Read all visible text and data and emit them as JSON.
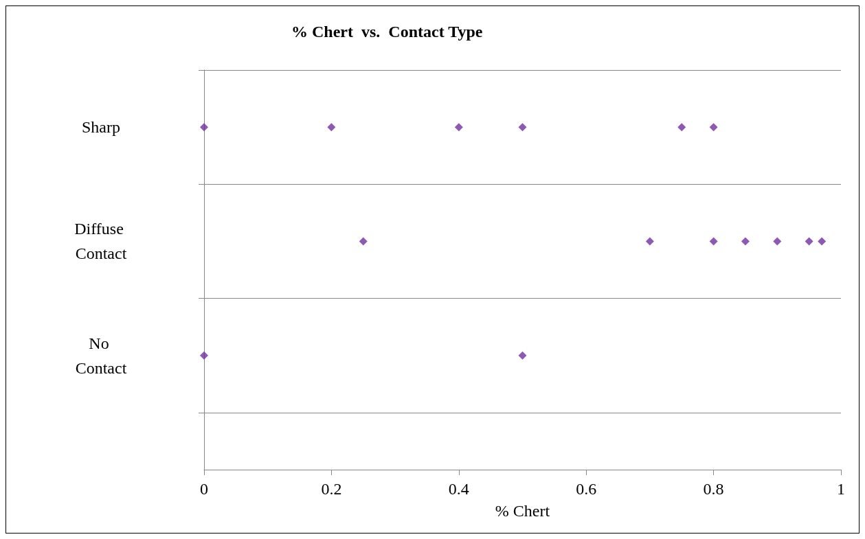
{
  "chart_data": {
    "type": "scatter",
    "title": "% Chert  vs.  Contact Type",
    "xlabel": "% Chert",
    "orientation": "horizontal",
    "categories": [
      "Sharp",
      "Diffuse Contact",
      "No Contact"
    ],
    "series": [
      {
        "color": "#7030a0",
        "values": [
          0,
          0.25,
          0
        ]
      },
      {
        "color": "#7030a0",
        "values": [
          0.2,
          0.7,
          0.5
        ]
      },
      {
        "color": "#7030a0",
        "values": [
          0.4,
          0.8,
          null
        ]
      },
      {
        "color": "#7030a0",
        "values": [
          0.5,
          0.85,
          null
        ]
      },
      {
        "color": "#7030a0",
        "values": [
          0.75,
          0.9,
          null
        ]
      },
      {
        "color": "#7030a0",
        "values": [
          0.8,
          0.95,
          null
        ]
      },
      {
        "color": "#7030a0",
        "values": [
          null,
          0.97,
          null
        ]
      }
    ],
    "xlim": [
      0,
      1
    ],
    "xticks": [
      0,
      0.2,
      0.4,
      0.6,
      0.8,
      1
    ],
    "grid": "y",
    "marker": "diamond"
  }
}
